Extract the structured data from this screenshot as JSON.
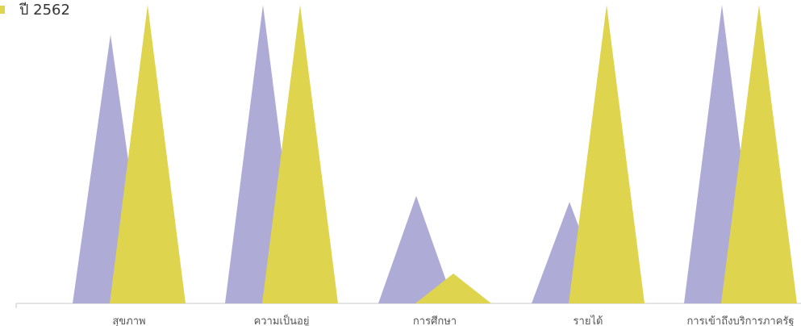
{
  "legend": {
    "visible_entry": "ปี 2562"
  },
  "colors": {
    "series_1": "#aeabd6",
    "series_2": "#dfd44e",
    "axis": "#c8c8c8"
  },
  "chart_data": {
    "type": "bar",
    "style": "overlapping-triangles",
    "title": "",
    "xlabel": "",
    "ylabel": "",
    "ylim": [
      0,
      100
    ],
    "grid": false,
    "legend_placement": "top-left",
    "categories": [
      "สุขภาพ",
      "ความเป็นอยู่",
      "การศึกษา",
      "รายได้",
      "การเข้าถึงบริการภาครัฐ"
    ],
    "series": [
      {
        "values": [
          90,
          100,
          36,
          34,
          100
        ],
        "color": "#aeabd6"
      },
      {
        "name": "ปี 2562",
        "values": [
          100,
          100,
          10,
          100,
          100
        ],
        "color": "#dfd44e"
      }
    ]
  }
}
